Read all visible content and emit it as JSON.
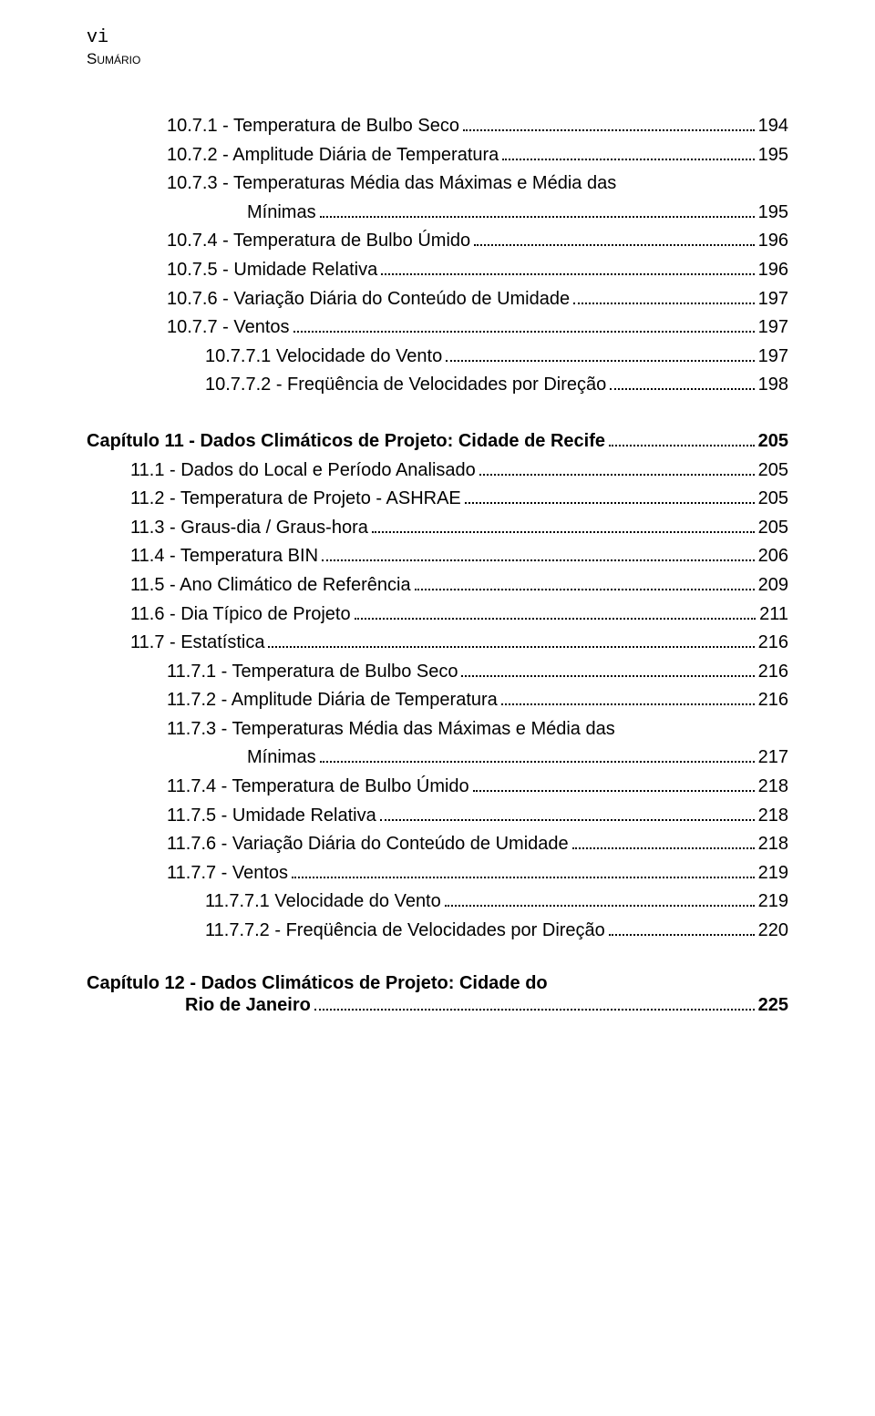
{
  "header": {
    "roman": "vi",
    "label": "Sumário"
  },
  "toc": [
    {
      "level": 1,
      "title": "10.7.1 - Temperatura de Bulbo Seco",
      "page": "194"
    },
    {
      "level": 1,
      "title": "10.7.2 - Amplitude Diária de Temperatura",
      "page": "195"
    },
    {
      "level": 1,
      "title": "10.7.3 - Temperaturas Média das Máximas e Média das",
      "wrap": true,
      "cont": "Mínimas",
      "page": "195"
    },
    {
      "level": 1,
      "title": "10.7.4 - Temperatura de Bulbo Úmido",
      "page": "196"
    },
    {
      "level": 1,
      "title": "10.7.5 - Umidade Relativa",
      "page": "196"
    },
    {
      "level": 1,
      "title": "10.7.6 - Variação Diária do Conteúdo de Umidade",
      "page": "197"
    },
    {
      "level": 1,
      "title": "10.7.7 - Ventos",
      "page": "197"
    },
    {
      "level": 2,
      "title": "10.7.7.1 Velocidade do Vento",
      "page": "197"
    },
    {
      "level": 2,
      "title": "10.7.7.2 - Freqüência de Velocidades por Direção",
      "page": "198"
    },
    {
      "gap": true
    },
    {
      "level": 0,
      "bold": true,
      "title": "Capítulo 11 - Dados Climáticos de Projeto: Cidade de Recife",
      "page": "205",
      "nolead_indent": true
    },
    {
      "level": 0,
      "title": "11.1 - Dados do Local e Período Analisado",
      "page": "205"
    },
    {
      "level": 0,
      "title": "11.2 - Temperatura de Projeto - ASHRAE",
      "page": "205"
    },
    {
      "level": 0,
      "title": "11.3 - Graus-dia / Graus-hora",
      "page": "205"
    },
    {
      "level": 0,
      "title": "11.4 - Temperatura BIN",
      "page": "206"
    },
    {
      "level": 0,
      "title": "11.5 - Ano Climático de Referência",
      "page": "209"
    },
    {
      "level": 0,
      "title": "11.6 - Dia Típico de Projeto",
      "page": "211"
    },
    {
      "level": 0,
      "title": "11.7 - Estatística",
      "page": "216"
    },
    {
      "level": 1,
      "title": "11.7.1 - Temperatura de Bulbo Seco",
      "page": "216"
    },
    {
      "level": 1,
      "title": "11.7.2 - Amplitude Diária de Temperatura",
      "page": "216"
    },
    {
      "level": 1,
      "title": "11.7.3 - Temperaturas Média das Máximas e Média das",
      "wrap": true,
      "cont": "Mínimas",
      "page": "217"
    },
    {
      "level": 1,
      "title": "11.7.4 - Temperatura de Bulbo Úmido",
      "page": "218"
    },
    {
      "level": 1,
      "title": "11.7.5 - Umidade Relativa",
      "page": "218"
    },
    {
      "level": 1,
      "title": "11.7.6 - Variação Diária do Conteúdo de Umidade",
      "page": "218"
    },
    {
      "level": 1,
      "title": "11.7.7 - Ventos",
      "page": "219"
    },
    {
      "level": 2,
      "title": "11.7.7.1 Velocidade do Vento",
      "page": "219"
    },
    {
      "level": 2,
      "title": "11.7.7.2 - Freqüência de Velocidades por Direção",
      "page": "220"
    }
  ],
  "chapter_footer": {
    "line1": "Capítulo 12 - Dados Climáticos de Projeto: Cidade do",
    "line2": "Rio de Janeiro",
    "page": "225"
  },
  "colors": {
    "text": "#000000",
    "background": "#ffffff"
  },
  "typography": {
    "body_font": "Arial",
    "body_size_pt": 15,
    "roman_font": "Courier New"
  }
}
